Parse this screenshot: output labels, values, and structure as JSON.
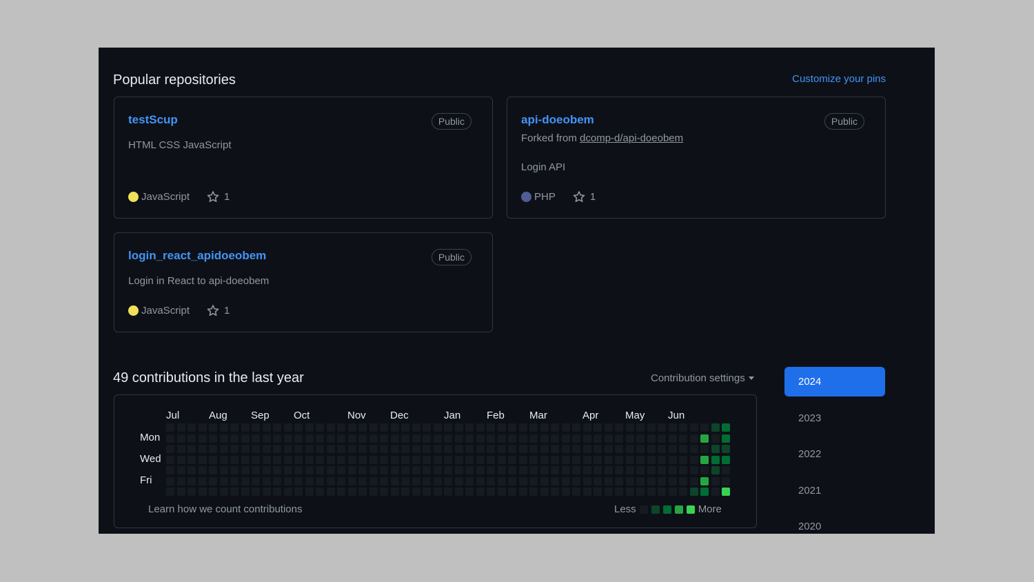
{
  "pinned": {
    "title": "Popular repositories",
    "customize_label": "Customize your pins",
    "repos": [
      {
        "name": "testScup",
        "badge": "Public",
        "description": "HTML CSS JavaScript",
        "language": "JavaScript",
        "lang_color": "#f1e05a",
        "stars": "1"
      },
      {
        "name": "api-doeobem",
        "badge": "Public",
        "forked_prefix": "Forked from ",
        "forked_from": "dcomp-d/api-doeobem",
        "description": "Login API",
        "language": "PHP",
        "lang_color": "#4F5D95",
        "stars": "1"
      },
      {
        "name": "login_react_apidoeobem",
        "badge": "Public",
        "description": "Login in React to api-doeobem",
        "language": "JavaScript",
        "lang_color": "#f1e05a",
        "stars": "1"
      }
    ]
  },
  "contributions": {
    "title": "49 contributions in the last year",
    "settings_label": "Contribution settings",
    "months": [
      "Jul",
      "Aug",
      "Sep",
      "Oct",
      "Nov",
      "Dec",
      "Jan",
      "Feb",
      "Mar",
      "Apr",
      "May",
      "Jun"
    ],
    "days": [
      "Mon",
      "Wed",
      "Fri"
    ],
    "learn_label": "Learn how we count contributions",
    "legend_less": "Less",
    "legend_more": "More",
    "colors": [
      "#161b22",
      "#0e4429",
      "#006d32",
      "#26a641",
      "#39d353"
    ]
  },
  "years": [
    "2024",
    "2023",
    "2022",
    "2021",
    "2020"
  ],
  "selected_year": "2024"
}
